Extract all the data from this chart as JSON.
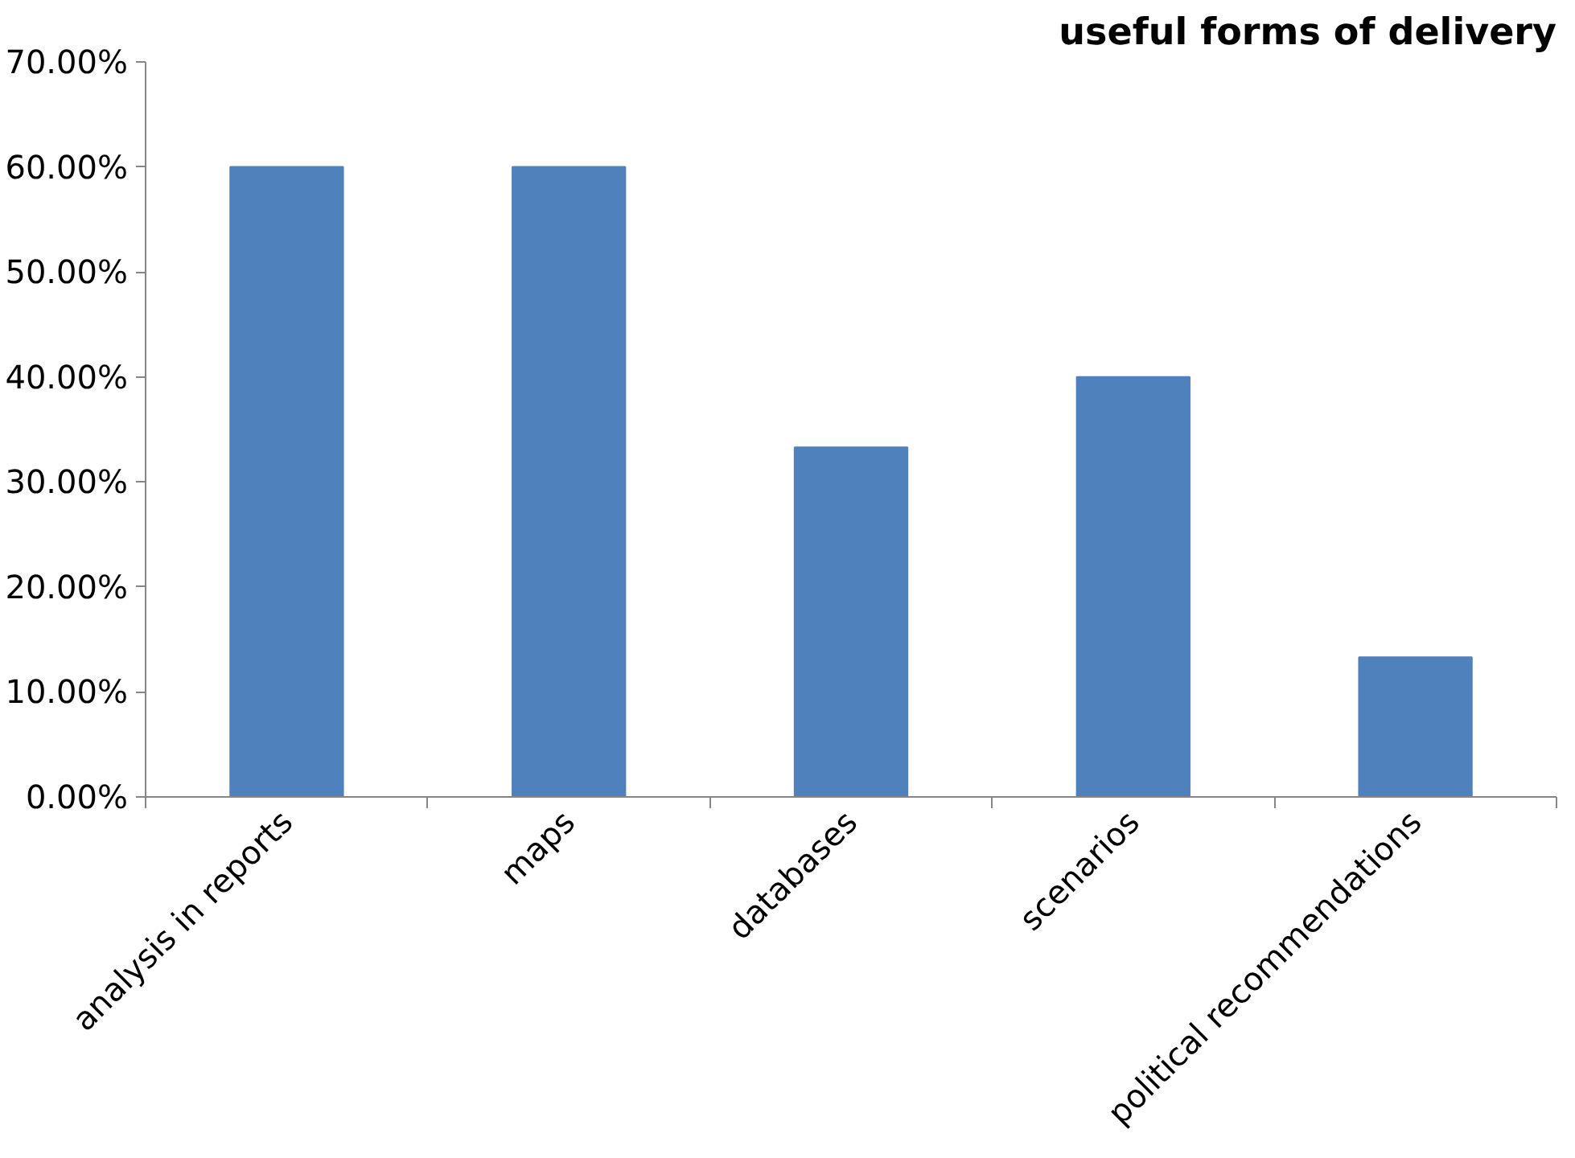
{
  "chart_data": {
    "type": "bar",
    "title": "useful forms of delivery",
    "categories": [
      "analysis in reports",
      "maps",
      "databases",
      "scenarios",
      "political recommendations"
    ],
    "values": [
      60,
      60,
      33.3,
      40,
      13.3
    ],
    "color": "#4f81bd",
    "ylim": [
      0,
      70
    ],
    "yticks": [
      {
        "value": 0,
        "label": "0.00%"
      },
      {
        "value": 10,
        "label": "10.00%"
      },
      {
        "value": 20,
        "label": "20.00%"
      },
      {
        "value": 30,
        "label": "30.00%"
      },
      {
        "value": 40,
        "label": "40.00%"
      },
      {
        "value": 50,
        "label": "50.00%"
      },
      {
        "value": 60,
        "label": "60.00%"
      },
      {
        "value": 70,
        "label": "70.00%"
      }
    ],
    "grid": false
  }
}
